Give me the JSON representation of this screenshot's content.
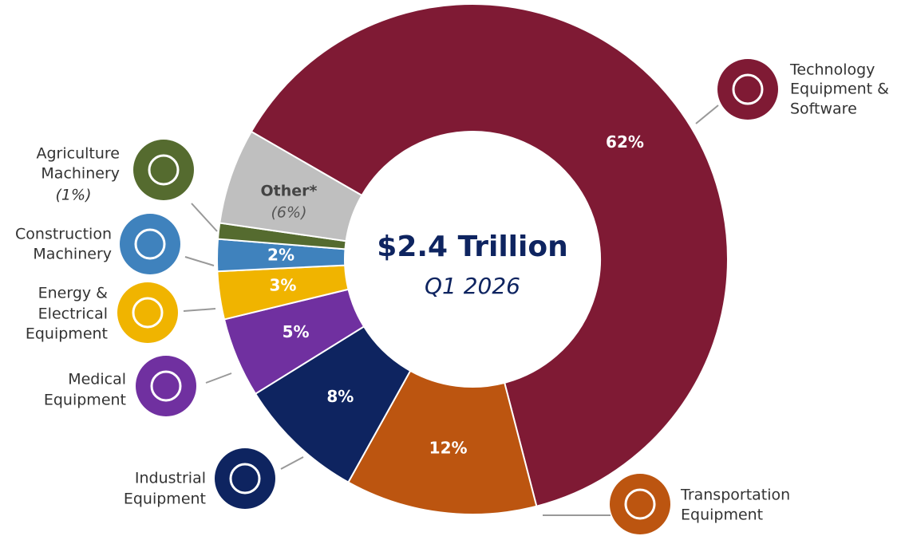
{
  "chart_data": {
    "type": "pie",
    "donut": true,
    "title": "$2.4 Trillion",
    "subtitle": "Q1 2026",
    "categories": [
      [
        "Technology",
        "Equipment &",
        "Software"
      ],
      [
        "Transportation",
        "Equipment"
      ],
      [
        "Industrial",
        "Equipment"
      ],
      [
        "Medical",
        "Equipment"
      ],
      [
        "Energy &",
        "Electrical",
        "Equipment"
      ],
      [
        "Construction",
        "Machinery"
      ],
      [
        "Agriculture",
        "Machinery"
      ],
      [
        "Other*"
      ]
    ],
    "values": [
      62,
      12,
      8,
      5,
      3,
      2,
      1,
      6
    ],
    "value_labels": [
      "62%",
      "12%",
      "8%",
      "5%",
      "3%",
      "2%",
      "(1%)",
      "(6%)"
    ],
    "colors": [
      "#7f1a34",
      "#bc5510",
      "#0e2460",
      "#7030a0",
      "#f0b400",
      "#3f82bd",
      "#556b2f",
      "#bfbfbf"
    ]
  }
}
